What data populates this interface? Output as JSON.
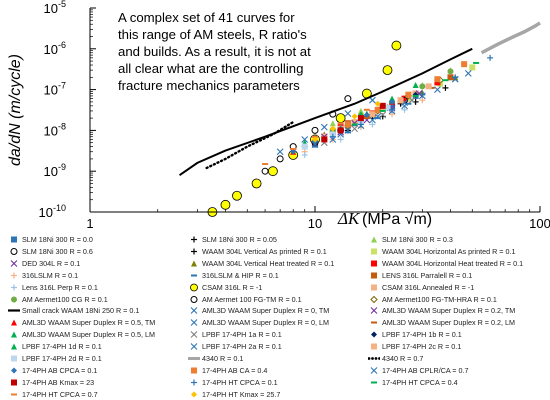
{
  "chart_data": {
    "type": "scatter",
    "xlabel_main": "ΔK",
    "xlabel_unit": "(MPa √m)",
    "ylabel": "da/dN (m/cycle)",
    "x_scale": "log",
    "y_scale": "log",
    "xlim": [
      1,
      100
    ],
    "ylim": [
      1e-10,
      1e-05
    ],
    "x_ticks": [
      {
        "v": 1,
        "label": "1"
      },
      {
        "v": 10,
        "label": "10"
      },
      {
        "v": 100,
        "label": "100"
      }
    ],
    "y_ticks": [
      {
        "v": 1e-10,
        "base": "10",
        "exp": "-10"
      },
      {
        "v": 1e-09,
        "base": "10",
        "exp": "-9"
      },
      {
        "v": 1e-08,
        "base": "10",
        "exp": "-8"
      },
      {
        "v": 1e-07,
        "base": "10",
        "exp": "-7"
      },
      {
        "v": 1e-06,
        "base": "10",
        "exp": "-6"
      },
      {
        "v": 1e-05,
        "base": "10",
        "exp": "-5"
      }
    ],
    "annotation": [
      "A complex set of 41 curves for",
      "this range of AM steels, R ratio's",
      "and builds. As a result, it is not at",
      "all clear what are the controlling",
      "fracture mechanics parameters"
    ],
    "small_crack_curve": {
      "name": "Small crack WAAM 18Ni 250 R = 0.1",
      "x": [
        2.5,
        3,
        4,
        6,
        10,
        15,
        20,
        30,
        40,
        50
      ],
      "y": [
        8e-10,
        1.6e-09,
        3.2e-09,
        7e-09,
        2e-08,
        4.5e-08,
        9e-08,
        2.5e-07,
        5.5e-07,
        1e-06
      ]
    },
    "gray_curve_4340": {
      "name": "4340 R = 0.1",
      "x": [
        55,
        65,
        75,
        85,
        95,
        100
      ],
      "y": [
        8e-07,
        1.3e-06,
        1.9e-06,
        2.6e-06,
        3.6e-06,
        4.3e-06
      ]
    },
    "series": [
      {
        "name": "SLM 18Ni 300 R = 0.0",
        "marker": "square",
        "color": "#2e75b6",
        "x": [
          10,
          12,
          15,
          18,
          22,
          28
        ],
        "y": [
          6e-09,
          9e-09,
          1.5e-08,
          2.5e-08,
          4e-08,
          7e-08
        ]
      },
      {
        "name": "SLM 18Ni 300 R = 0.05",
        "marker": "plus",
        "color": "#000000",
        "x": [
          9,
          11,
          14,
          18,
          24
        ],
        "y": [
          4e-09,
          7e-09,
          1.2e-08,
          2.2e-08,
          4.5e-08
        ]
      },
      {
        "name": "SLM 18Ni 300 R = 0.3",
        "marker": "triangle",
        "color": "#92d050",
        "x": [
          12,
          16,
          22,
          30,
          40
        ],
        "y": [
          1.5e-08,
          3e-08,
          6e-08,
          1.3e-07,
          3e-07
        ]
      },
      {
        "name": "SLM 18Ni 300 R = 0.6",
        "marker": "circle-open",
        "color": "#000000",
        "x": [
          6,
          7,
          8,
          10,
          12,
          14
        ],
        "y": [
          1e-09,
          2e-09,
          4e-09,
          1e-08,
          2.5e-08,
          6e-08
        ]
      },
      {
        "name": "WAAM 304L Vertical As printed R = 0.1",
        "marker": "plus",
        "color": "#000000",
        "x": [
          10,
          14,
          20,
          28,
          38
        ],
        "y": [
          5e-09,
          1e-08,
          2.2e-08,
          5e-08,
          1.1e-07
        ]
      },
      {
        "name": "WAAM 304L Horizontal As printed R = 0.1",
        "marker": "square",
        "color": "#c9e265",
        "x": [
          12,
          18,
          26,
          36,
          50
        ],
        "y": [
          1e-08,
          2.5e-08,
          6e-08,
          1.4e-07,
          3.5e-07
        ]
      },
      {
        "name": "DED 304L R = 0.1",
        "marker": "x",
        "color": "#7030a0",
        "x": [
          8,
          10,
          13,
          17,
          22
        ],
        "y": [
          3e-09,
          5e-09,
          9e-09,
          1.8e-08,
          3.5e-08
        ]
      },
      {
        "name": "WAAM 304L Vertical Heat treated R = 0.1",
        "marker": "triangle",
        "color": "#7f7f00",
        "x": [
          11,
          15,
          21,
          30,
          42
        ],
        "y": [
          8e-09,
          1.7e-08,
          3.8e-08,
          8.5e-08,
          2e-07
        ]
      },
      {
        "name": "WAAM 304L Horizontal Heat treated R = 0.1",
        "marker": "square",
        "color": "#ff0000",
        "x": [
          13,
          18,
          25,
          35
        ],
        "y": [
          1.2e-08,
          2.6e-08,
          6e-08,
          1.5e-07
        ]
      },
      {
        "name": "316LSLM R = 0.1",
        "marker": "plus",
        "color": "#f4b183",
        "x": [
          9,
          12,
          16,
          22,
          30
        ],
        "y": [
          3e-09,
          6e-09,
          1.2e-08,
          2.5e-08,
          5.5e-08
        ]
      },
      {
        "name": "316LSLM & HIP R = 0.1",
        "marker": "dash",
        "color": "#2e75b6",
        "x": [
          10,
          14,
          19,
          26
        ],
        "y": [
          4e-09,
          9e-09,
          2e-08,
          4.5e-08
        ]
      },
      {
        "name": "LENS 316L Parralell R = 0.1",
        "marker": "square",
        "color": "#c55a11",
        "x": [
          14,
          20,
          28,
          40
        ],
        "y": [
          1.5e-08,
          3.5e-08,
          8e-08,
          2e-07
        ]
      },
      {
        "name": "Lens 316L Perp R = 0.1",
        "marker": "plus",
        "color": "#9dc3e6",
        "x": [
          9,
          13,
          18,
          25
        ],
        "y": [
          2.5e-09,
          6e-09,
          1.4e-08,
          3.2e-08
        ]
      },
      {
        "name": "CSAM 316L R = -1",
        "marker": "circle-yellow",
        "color": "#ffff00",
        "x": [
          3.5,
          4,
          4.5,
          5.5,
          6.5,
          8,
          10,
          13,
          17,
          21,
          23
        ],
        "y": [
          1e-10,
          1.5e-10,
          2.5e-10,
          5e-10,
          1e-09,
          2.5e-09,
          6e-09,
          2e-08,
          8e-08,
          3e-07,
          1.2e-06
        ]
      },
      {
        "name": "CSAM 316L Annealed R = -1",
        "marker": "square",
        "color": "#f4b183",
        "x": [
          11,
          15,
          20,
          28
        ],
        "y": [
          7e-09,
          1.6e-08,
          3.5e-08,
          8e-08
        ]
      },
      {
        "name": "AM Aermet100 CG R = 0.1",
        "marker": "circle",
        "color": "#70ad47",
        "x": [
          12,
          16,
          22,
          30,
          40
        ],
        "y": [
          1e-08,
          2.3e-08,
          5e-08,
          1.2e-07,
          2.8e-07
        ]
      },
      {
        "name": "AM Aermet 100 FG-TM R = 0.1",
        "marker": "circle-outline",
        "color": "#000000",
        "x": [
          10,
          13,
          18,
          25
        ],
        "y": [
          5e-09,
          1e-08,
          2.3e-08,
          5.5e-08
        ]
      },
      {
        "name": "AM Aermet100 FG-TM-HRA R = 0.1",
        "marker": "diamond-outline",
        "color": "#7f6000",
        "x": [
          14,
          19,
          26,
          36
        ],
        "y": [
          1.3e-08,
          3e-08,
          7e-08,
          1.7e-07
        ]
      },
      {
        "name": "AML3D WAAM Super Duplex R = 0.5, TM",
        "marker": "triangle",
        "color": "#ff0000",
        "x": [
          8,
          10,
          13,
          17,
          22
        ],
        "y": [
          3e-09,
          6e-09,
          1.2e-08,
          2.5e-08,
          5e-08
        ]
      },
      {
        "name": "AML3D WAAM Super Duplex R = 0, TM",
        "marker": "x",
        "color": "#2e75b6",
        "x": [
          12,
          16,
          22,
          30,
          42
        ],
        "y": [
          6e-09,
          1.3e-08,
          3e-08,
          7e-08,
          1.8e-07
        ]
      },
      {
        "name": "AML3D WAAM Super Duplex R = 0.2, TM",
        "marker": "x",
        "color": "#7030a0",
        "x": [
          11,
          15,
          21,
          29
        ],
        "y": [
          7e-09,
          1.5e-08,
          3.5e-08,
          8e-08
        ]
      },
      {
        "name": "AML3D WAAM Super Duplex R = 0.5, LM",
        "marker": "triangle",
        "color": "#00b050",
        "x": [
          9,
          12,
          16,
          22,
          28
        ],
        "y": [
          5e-09,
          1.1e-08,
          2.5e-08,
          6e-08,
          1.3e-07
        ]
      },
      {
        "name": "AML3D WAAM Super Duplex R = 0, LM",
        "marker": "x",
        "color": "#2e75b6",
        "x": [
          13,
          18,
          25,
          35,
          48
        ],
        "y": [
          8e-09,
          1.8e-08,
          4e-08,
          1e-07,
          2.5e-07
        ]
      },
      {
        "name": "AML3D WAAM Super Duplex R = 0.2, LM",
        "marker": "dash",
        "color": "#c55a11",
        "x": [
          12,
          17,
          24,
          33
        ],
        "y": [
          9e-09,
          2e-08,
          4.8e-08,
          1.1e-07
        ]
      },
      {
        "name": "LPBF 17-4PH 1d R = 0.1",
        "marker": "triangle",
        "color": "#00b050",
        "x": [
          10,
          13,
          17,
          22
        ],
        "y": [
          6e-09,
          1.2e-08,
          2.6e-08,
          5.5e-08
        ]
      },
      {
        "name": "LPBF 17-4PH 1a R = 0.1",
        "marker": "x",
        "color": "#7f7f7f",
        "x": [
          11,
          15,
          20,
          27
        ],
        "y": [
          5e-09,
          1.1e-08,
          2.4e-08,
          5.5e-08
        ]
      },
      {
        "name": "LPBF 17-4PH 1b R = 0.1",
        "marker": "diamond",
        "color": "#002060",
        "x": [
          12,
          16,
          21,
          28
        ],
        "y": [
          8e-09,
          1.7e-08,
          3.5e-08,
          7.5e-08
        ]
      },
      {
        "name": "LPBF 17-4PH 2d R = 0.1",
        "marker": "square",
        "color": "#bdd7ee",
        "x": [
          9,
          12,
          16,
          21
        ],
        "y": [
          4e-09,
          8e-09,
          1.7e-08,
          3.6e-08
        ]
      },
      {
        "name": "LPBF 17-4PH 2a R = 0.1",
        "marker": "x",
        "color": "#2e75b6",
        "x": [
          10,
          14,
          19,
          25
        ],
        "y": [
          4.5e-09,
          1e-08,
          2.2e-08,
          4.8e-08
        ]
      },
      {
        "name": "LPBF 17-4PH 2c R = 0.1",
        "marker": "square",
        "color": "#f4b183",
        "x": [
          13,
          18,
          24,
          32
        ],
        "y": [
          1.1e-08,
          2.5e-08,
          5.5e-08,
          1.2e-07
        ]
      },
      {
        "name": "4340 R = 0.7",
        "marker": "dotted",
        "color": "#000000",
        "x": [
          3.3,
          4,
          5,
          6.5,
          8
        ],
        "y": [
          1.2e-09,
          2e-09,
          4e-09,
          8e-09,
          1.6e-08
        ]
      },
      {
        "name": "17-4PH AB CPCA = 0.1",
        "marker": "diamond",
        "color": "#2e75b6",
        "x": [
          8,
          10,
          13,
          17,
          22
        ],
        "y": [
          3e-09,
          5.5e-09,
          1.1e-08,
          2.4e-08,
          5e-08
        ]
      },
      {
        "name": "17-4PH AB CA = 0.4",
        "marker": "square",
        "color": "#ed7d31",
        "x": [
          14,
          19,
          26,
          35,
          46
        ],
        "y": [
          1.4e-08,
          3.2e-08,
          7.5e-08,
          1.8e-07,
          4.2e-07
        ]
      },
      {
        "name": "17-4PH AB CPLR/CA = 0.7",
        "marker": "x",
        "color": "#2e75b6",
        "x": [
          7,
          9,
          11,
          14,
          18
        ],
        "y": [
          3e-09,
          6e-09,
          1.2e-08,
          2.6e-08,
          5.5e-08
        ]
      },
      {
        "name": "17-4PH AB Kmax = 23",
        "marker": "square",
        "color": "#c00000",
        "x": [
          11,
          13,
          16,
          20
        ],
        "y": [
          6e-09,
          1e-08,
          2e-08,
          4e-08
        ]
      },
      {
        "name": "17-4PH HT CPCA = 0.1",
        "marker": "plus",
        "color": "#2e75b6",
        "x": [
          12,
          16,
          22,
          30,
          42,
          60
        ],
        "y": [
          7e-09,
          1.4e-08,
          3.2e-08,
          7.5e-08,
          2e-07,
          6e-07
        ]
      },
      {
        "name": "17-4PH HT CPCA = 0.4",
        "marker": "dash",
        "color": "#00b050",
        "x": [
          15,
          20,
          28,
          38,
          52
        ],
        "y": [
          1.4e-08,
          3e-08,
          7e-08,
          1.7e-07,
          4.5e-07
        ]
      },
      {
        "name": "17-4PH HT CPCA = 0.7",
        "marker": "dash",
        "color": "#ed7d31",
        "x": [
          6,
          8,
          10,
          13,
          17
        ],
        "y": [
          1.5e-09,
          3.5e-09,
          7e-09,
          1.5e-08,
          3.2e-08
        ]
      },
      {
        "name": "17-4PH HT Kmax = 25.7",
        "marker": "diamond",
        "color": "#ffc000",
        "x": [
          10,
          12,
          15,
          19
        ],
        "y": [
          6e-09,
          1.1e-08,
          2.2e-08,
          4.5e-08
        ]
      }
    ],
    "legend": [
      [
        {
          "marker": "square",
          "color": "#2e75b6",
          "label": "SLM 18Ni 300 R = 0.0"
        },
        {
          "marker": "plus",
          "color": "#000000",
          "label": "SLM 18Ni 300 R = 0.05"
        },
        {
          "marker": "triangle",
          "color": "#92d050",
          "label": "SLM 18Ni 300 R = 0.3"
        }
      ],
      [
        {
          "marker": "circle-open",
          "color": "#000000",
          "label": "SLM 18Ni 300 R = 0.6"
        },
        {
          "marker": "plus",
          "color": "#000000",
          "label": "WAAM 304L Vertical As printed R = 0.1"
        },
        {
          "marker": "square",
          "color": "#c9e265",
          "label": "WAAM 304L Horizontal As printed R = 0.1"
        }
      ],
      [
        {
          "marker": "x",
          "color": "#7030a0",
          "label": "DED 304L R = 0.1"
        },
        {
          "marker": "triangle",
          "color": "#7f7f00",
          "label": "WAAM 304L Vertical Heat treated R = 0.1"
        },
        {
          "marker": "square",
          "color": "#ff0000",
          "label": "WAAM 304L Horizontal Heat treated R = 0.1"
        }
      ],
      [
        {
          "marker": "plus",
          "color": "#f4b183",
          "label": "316LSLM R = 0.1"
        },
        {
          "marker": "dash",
          "color": "#2e75b6",
          "label": "316LSLM & HIP R = 0.1"
        },
        {
          "marker": "square",
          "color": "#c55a11",
          "label": "LENS 316L Parralell R = 0.1"
        }
      ],
      [
        {
          "marker": "plus",
          "color": "#9dc3e6",
          "label": "Lens 316L Perp R = 0.1"
        },
        {
          "marker": "circle-yellow",
          "color": "#ffff00",
          "label": "CSAM 316L R = -1"
        },
        {
          "marker": "square",
          "color": "#f4b183",
          "label": "CSAM 316L Annealed R = -1"
        }
      ],
      [
        {
          "marker": "circle",
          "color": "#70ad47",
          "label": "AM Aermet100 CG R = 0.1"
        },
        {
          "marker": "circle-outline",
          "color": "#000000",
          "label": "AM Aermet 100 FG-TM R = 0.1"
        },
        {
          "marker": "diamond-outline",
          "color": "#7f6000",
          "label": "AM Aermet100 FG-TM-HRA R = 0.1"
        }
      ],
      [
        {
          "marker": "line",
          "color": "#000000",
          "label": "Small crack WAAM 18Ni 250 R = 0.1"
        },
        {
          "marker": "x",
          "color": "#2e75b6",
          "label": "AML3D WAAM Super Duplex R = 0, TM"
        },
        {
          "marker": "x",
          "color": "#7030a0",
          "label": "AML3D WAAM Super Duplex R = 0.2, TM"
        }
      ],
      [
        {
          "marker": "triangle",
          "color": "#ff0000",
          "label": "AML3D WAAM Super Duplex R = 0.5, TM"
        },
        {
          "marker": "x",
          "color": "#2e75b6",
          "label": "AML3D WAAM Super Duplex R = 0, LM"
        },
        {
          "marker": "dash",
          "color": "#c55a11",
          "label": "AML3D WAAM Super Duplex R = 0.2, LM"
        }
      ],
      [
        {
          "marker": "triangle",
          "color": "#00b050",
          "label": "AML3D WAAM Super Duplex R = 0.5, LM"
        },
        {
          "marker": "x",
          "color": "#7f7f7f",
          "label": "LPBF 17-4PH 1a R = 0.1"
        },
        {
          "marker": "diamond",
          "color": "#002060",
          "label": "LPBF 17-4PH 1b R = 0.1"
        }
      ],
      [
        {
          "marker": "triangle",
          "color": "#00b050",
          "label": "LPBF 17-4PH 1d R = 0.1"
        },
        {
          "marker": "x",
          "color": "#2e75b6",
          "label": "LPBF 17-4PH 2a R = 0.1"
        },
        {
          "marker": "square",
          "color": "#f4b183",
          "label": "LPBF 17-4PH 2c R = 0.1"
        }
      ],
      [
        {
          "marker": "square",
          "color": "#bdd7ee",
          "label": "LPBF 17-4PH 2d R = 0.1"
        },
        {
          "marker": "grayline",
          "color": "#a6a6a6",
          "label": "4340 R = 0.1"
        },
        {
          "marker": "dotted",
          "color": "#000000",
          "label": "4340 R = 0.7"
        }
      ],
      [
        {
          "marker": "diamond",
          "color": "#2e75b6",
          "label": "17-4PH AB CPCA = 0.1"
        },
        {
          "marker": "square",
          "color": "#ed7d31",
          "label": "17-4PH AB CA = 0.4"
        },
        {
          "marker": "x",
          "color": "#2e75b6",
          "label": "17-4PH AB CPLR/CA = 0.7"
        }
      ],
      [
        {
          "marker": "square",
          "color": "#c00000",
          "label": "17-4PH AB Kmax = 23"
        },
        {
          "marker": "plus",
          "color": "#2e75b6",
          "label": "17-4PH HT CPCA = 0.1"
        },
        {
          "marker": "dash",
          "color": "#00b050",
          "label": "17-4PH HT CPCA = 0.4"
        }
      ],
      [
        {
          "marker": "dash",
          "color": "#ed7d31",
          "label": "17-4PH HT CPCA = 0.7"
        },
        {
          "marker": "diamond",
          "color": "#ffc000",
          "label": "17-4PH HT Kmax = 25.7"
        }
      ]
    ]
  }
}
